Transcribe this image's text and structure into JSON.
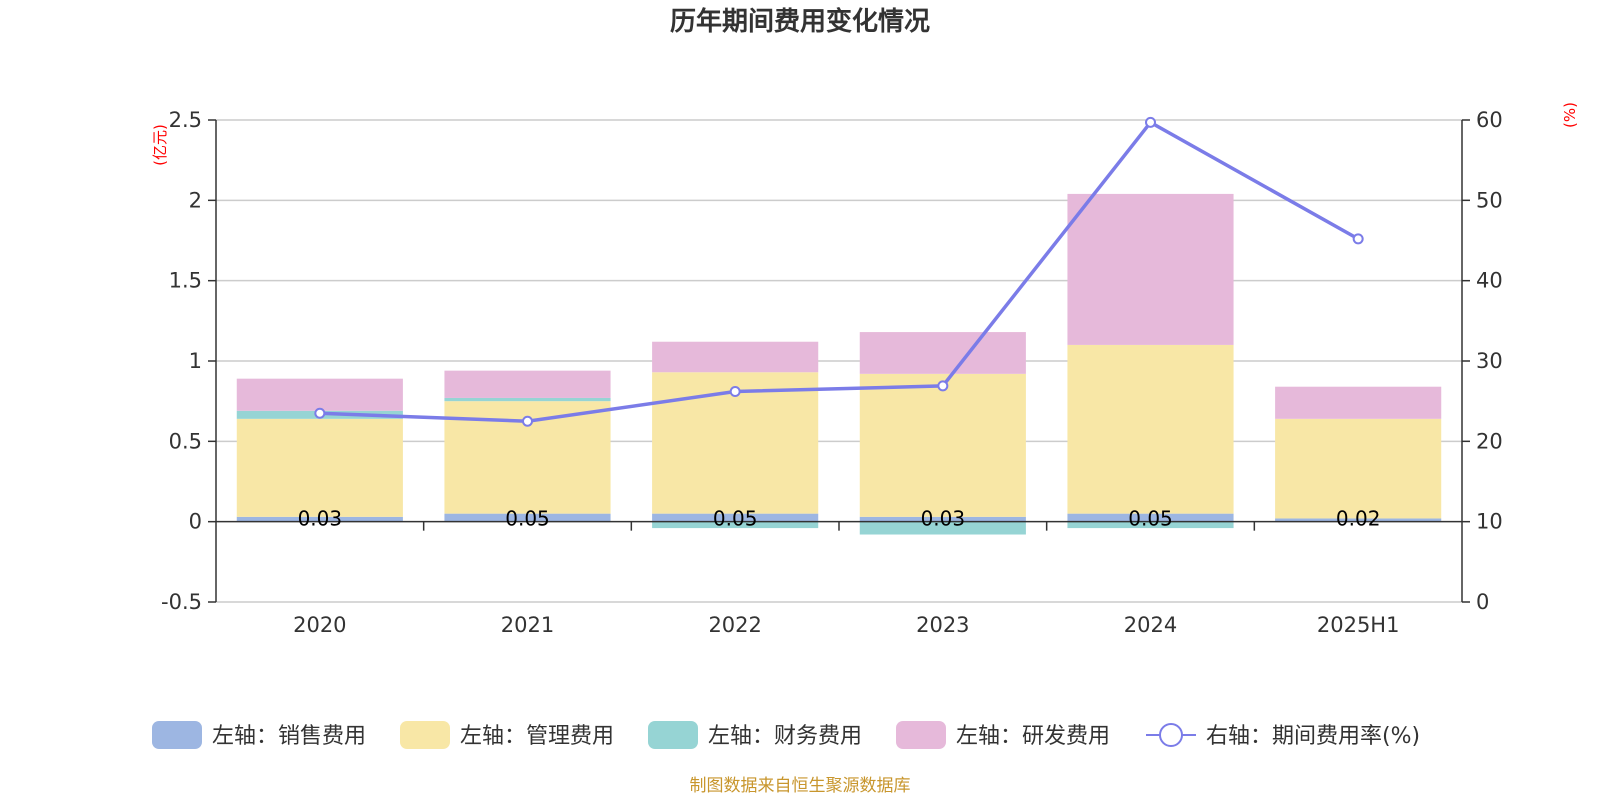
{
  "chart_data": {
    "type": "bar",
    "title": "历年期间费用变化情况",
    "y_left_unit": "(亿元)",
    "y_right_unit": "(%)",
    "categories": [
      "2020",
      "2021",
      "2022",
      "2023",
      "2024",
      "2025H1"
    ],
    "y_left_ticks": [
      "-0.5",
      "0",
      "0.5",
      "1",
      "1.5",
      "2",
      "2.5"
    ],
    "y_right_ticks": [
      "0",
      "10",
      "20",
      "30",
      "40",
      "50",
      "60"
    ],
    "ylim_left": [
      -0.5,
      2.5
    ],
    "ylim_right": [
      0,
      60
    ],
    "grid": true,
    "legend_position": "bottom",
    "series": [
      {
        "name": "左轴：销售费用",
        "axis": "left",
        "color": "#9db6e2",
        "values": [
          0.03,
          0.05,
          0.05,
          0.03,
          0.05,
          0.02
        ],
        "labels": [
          "0.03",
          "0.05",
          "0.05",
          "0.03",
          "0.05",
          "0.02"
        ]
      },
      {
        "name": "左轴：管理费用",
        "axis": "left",
        "color": "#f8e7a6",
        "values": [
          0.61,
          0.7,
          0.88,
          0.89,
          1.05,
          0.62
        ]
      },
      {
        "name": "左轴：财务费用",
        "axis": "left",
        "color": "#96d4d4",
        "values": [
          0.05,
          0.02,
          -0.04,
          -0.08,
          -0.04,
          0.0
        ]
      },
      {
        "name": "左轴：研发费用",
        "axis": "left",
        "color": "#e6b9da",
        "values": [
          0.2,
          0.17,
          0.19,
          0.26,
          0.94,
          0.2
        ]
      },
      {
        "name": "右轴：期间费用率(%)",
        "axis": "right",
        "type": "line",
        "color": "#7b7ce8",
        "values": [
          23.5,
          22.5,
          26.2,
          26.9,
          59.7,
          45.2
        ]
      }
    ]
  },
  "footer": {
    "source": "制图数据来自恒生聚源数据库"
  }
}
